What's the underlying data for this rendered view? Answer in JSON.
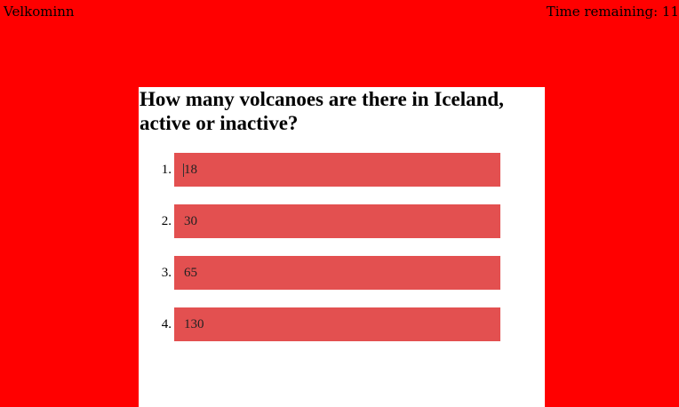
{
  "header": {
    "welcome": "Velkominn",
    "timer": "Time remaining: 11"
  },
  "quiz": {
    "question": "How many volcanoes are there in Iceland, active or inactive?",
    "answers": [
      {
        "number": "1.",
        "label": "18"
      },
      {
        "number": "2.",
        "label": "30"
      },
      {
        "number": "3.",
        "label": "65"
      },
      {
        "number": "4.",
        "label": "130"
      }
    ]
  },
  "colors": {
    "background": "#ff0000",
    "card": "#ffffff",
    "answer_box": "#e35050"
  }
}
